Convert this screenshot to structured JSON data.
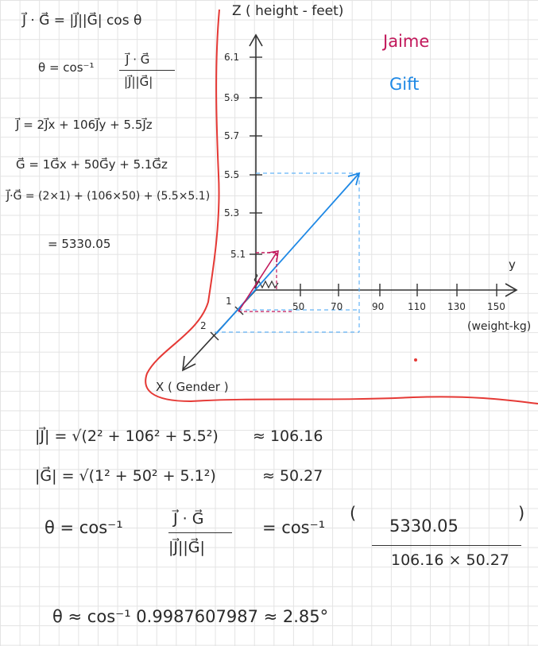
{
  "notes": {
    "line1": "J⃗ · G⃗ = |J⃗||G⃗| cos θ",
    "theta_def_lhs": "θ = cos⁻¹",
    "theta_def_num": "J⃗ · G⃗",
    "theta_def_den": "|J⃗||G⃗|",
    "j_vec": "J⃗ = 2J⃗x + 106J⃗y + 5.5J⃗z",
    "g_vec": "G⃗ = 1G⃗x + 50G⃗y + 5.1G⃗z",
    "dot_expand": "J⃗·G⃗ = (2×1) + (106×50) + (5.5×5.1)",
    "dot_result": "= 5330.05",
    "mag_j_lhs": "|J⃗| = √(2² + 106² + 5.5²)",
    "mag_j_val": "≈ 106.16",
    "mag_g_lhs": "|G⃗| = √(1² + 50² + 5.1²)",
    "mag_g_val": "≈ 50.27",
    "theta_calc_lhs": "θ = cos⁻¹",
    "theta_calc_num": "J⃗ · G⃗",
    "theta_calc_den": "|J⃗||G⃗|",
    "theta_calc_eq": "= cos⁻¹",
    "theta_frac_num": "5330.05",
    "theta_frac_den": "106.16 × 50.27",
    "final": "θ ≈ cos⁻¹ 0.9987607987 ≈ 2.85°"
  },
  "graph": {
    "z_axis_label": "Z ( height - feet)",
    "y_axis_label": "y",
    "y_axis_unit": "(weight-kg)",
    "x_axis_label": "X ( Gender )",
    "z_ticks": [
      "6.1",
      "5.9",
      "5.7",
      "5.5",
      "5.3",
      "5.1"
    ],
    "y_ticks": [
      "50",
      "70",
      "90",
      "110",
      "130",
      "150"
    ],
    "x_ticks": [
      "1",
      "2"
    ]
  },
  "legend": {
    "jaime": "Jaime",
    "gift": "Gift"
  },
  "colors": {
    "jaime": "#c2185b",
    "gift": "#1e88e5",
    "boundary": "#e53935",
    "ink": "#2a2a2a"
  }
}
